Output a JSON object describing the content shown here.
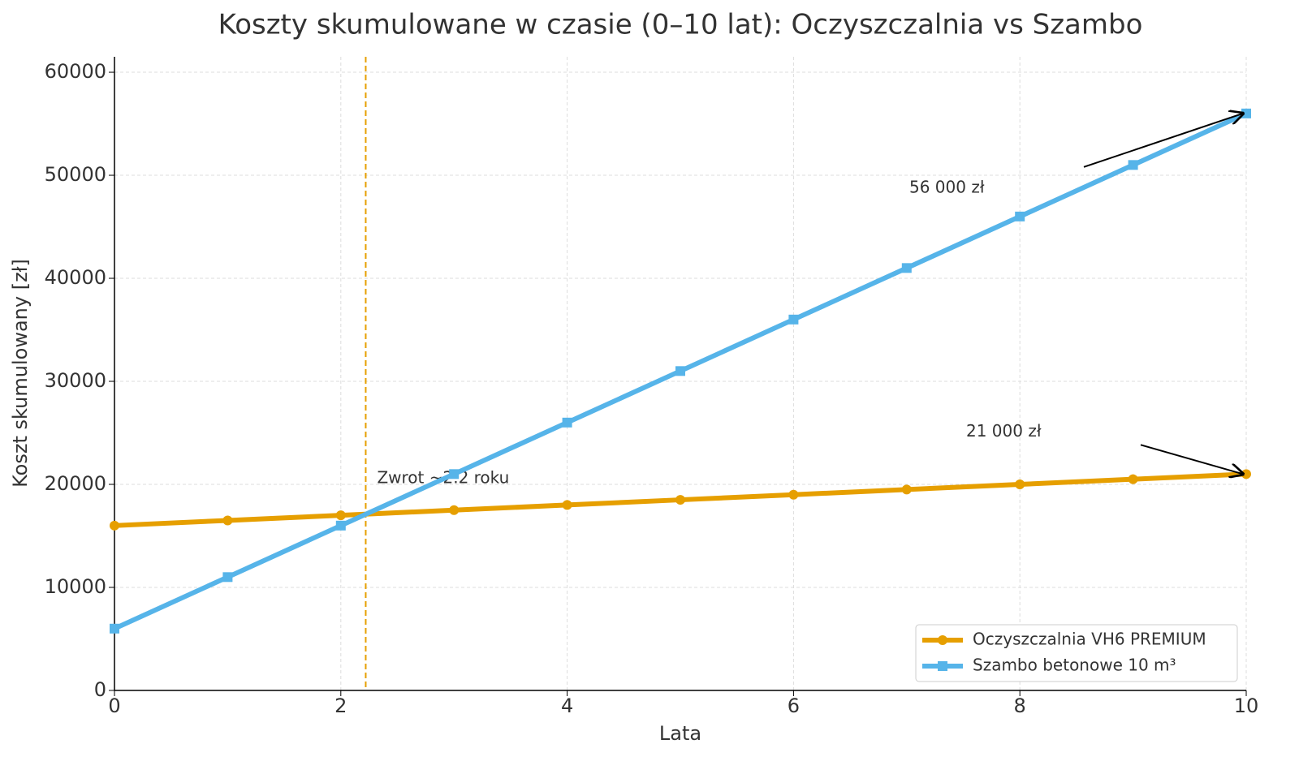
{
  "chart_data": {
    "type": "line",
    "title": "Koszty skumulowane w czasie (0–10 lat): Oczyszczalnia vs Szambo",
    "x_label": "Lata",
    "y_label": "Koszt skumulowany [zł]",
    "x": [
      0,
      1,
      2,
      3,
      4,
      5,
      6,
      7,
      8,
      9,
      10
    ],
    "series": [
      {
        "name": "Oczyszczalnia VH6 PREMIUM",
        "color": "#e69f00",
        "marker": "circle",
        "values": [
          16000,
          16500,
          17000,
          17500,
          18000,
          18500,
          19000,
          19500,
          20000,
          20500,
          21000
        ]
      },
      {
        "name": "Szambo betonowe 10 m³",
        "color": "#56b4e9",
        "marker": "square",
        "values": [
          6000,
          11000,
          16000,
          21000,
          26000,
          31000,
          36000,
          41000,
          46000,
          51000,
          56000
        ]
      }
    ],
    "xlim": [
      0,
      10
    ],
    "xticks": [
      0,
      2,
      4,
      6,
      8,
      10
    ],
    "ylim": [
      0,
      61500
    ],
    "yticks": [
      0,
      10000,
      20000,
      30000,
      40000,
      50000,
      60000
    ],
    "grid": true,
    "legend": "lower right",
    "vline": {
      "x": 2.22,
      "color": "#e69f00",
      "label": "Zwrot ~2.2 roku"
    },
    "annotations": [
      {
        "text": "56 000 zł",
        "x": 10,
        "y": 56000
      },
      {
        "text": "21 000 zł",
        "x": 10,
        "y": 21000
      }
    ]
  }
}
